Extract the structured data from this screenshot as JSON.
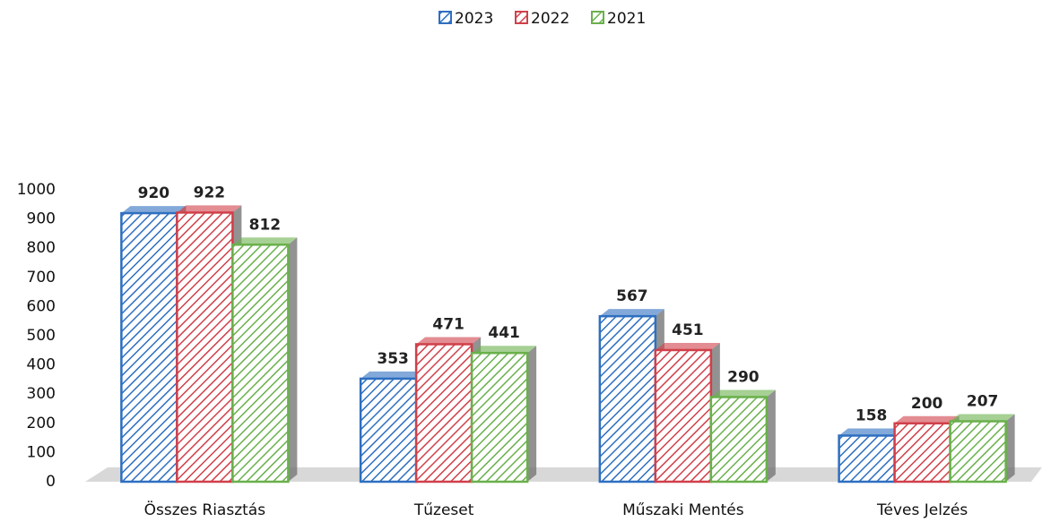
{
  "chart_data": {
    "type": "bar",
    "categories": [
      "Összes Riasztás",
      "Tűzeset",
      "Műszaki Mentés",
      "Téves Jelzés"
    ],
    "series": [
      {
        "name": "2023",
        "color": "#2e6fc0",
        "values": [
          920,
          353,
          567,
          158
        ]
      },
      {
        "name": "2022",
        "color": "#d0404a",
        "values": [
          922,
          471,
          451,
          200
        ]
      },
      {
        "name": "2021",
        "color": "#6ab04c",
        "values": [
          812,
          441,
          290,
          207
        ]
      }
    ],
    "ylim": [
      0,
      1000
    ],
    "yticks": [
      0,
      100,
      200,
      300,
      400,
      500,
      600,
      700,
      800,
      900,
      1000
    ],
    "grid": false,
    "legend": "top"
  }
}
